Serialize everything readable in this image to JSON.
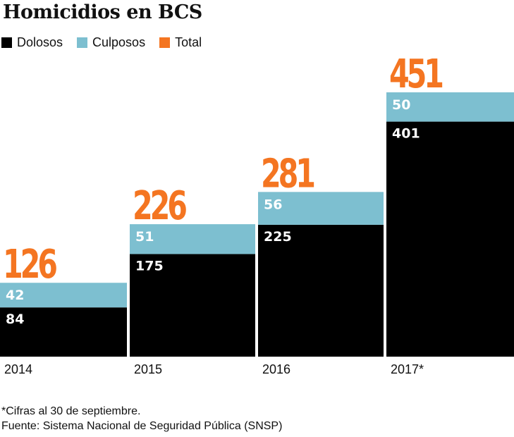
{
  "title": "Homicidios en BCS",
  "legend": [
    {
      "name": "Dolosos",
      "color": "#000000"
    },
    {
      "name": "Culposos",
      "color": "#7dbfd0"
    },
    {
      "name": "Total",
      "color": "#f47521"
    }
  ],
  "colors": {
    "dolosos": "#000000",
    "culposos": "#7dbfd0",
    "total": "#f47521"
  },
  "chart_data": {
    "type": "bar",
    "stacked": true,
    "title": "Homicidios en BCS",
    "categories": [
      "2014",
      "2015",
      "2016",
      "2017*"
    ],
    "series": [
      {
        "name": "Dolosos",
        "values": [
          84,
          175,
          225,
          401
        ]
      },
      {
        "name": "Culposos",
        "values": [
          42,
          51,
          56,
          50
        ]
      }
    ],
    "totals": [
      "126",
      "226",
      "281",
      "451"
    ],
    "ylim": [
      0,
      451
    ]
  },
  "notes": {
    "footnote": "*Cifras al 30 de septiembre.",
    "source": "Fuente: Sistema Nacional de Seguridad Pública (SNSP)"
  }
}
